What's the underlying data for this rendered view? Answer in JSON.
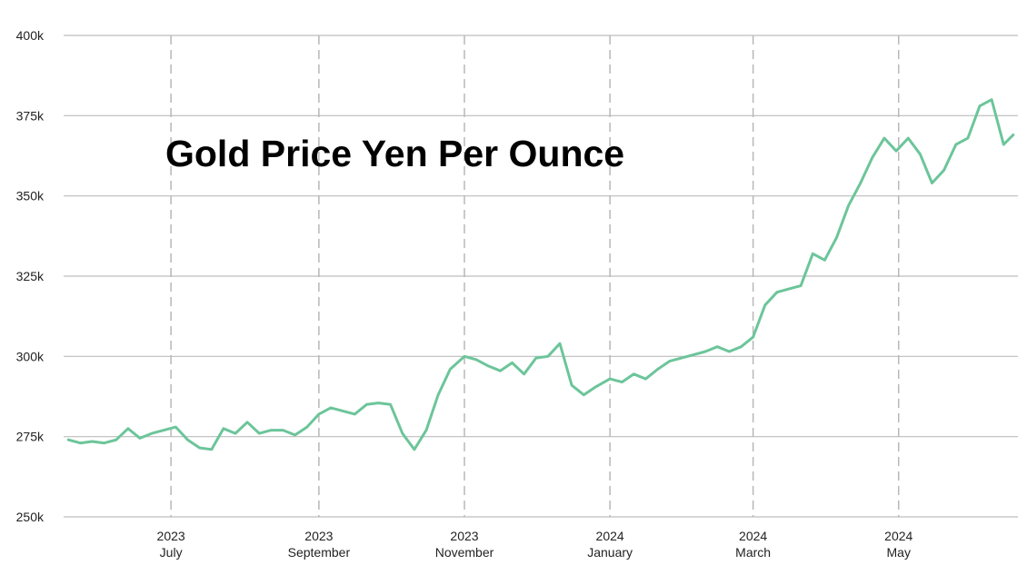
{
  "chart_data": {
    "type": "line",
    "title": "Gold Price Yen Per Ounce",
    "xlabel": "",
    "ylabel": "",
    "ylim": [
      250000,
      400000
    ],
    "y_ticks": [
      {
        "value": 250000,
        "label": "250k"
      },
      {
        "value": 275000,
        "label": "275k"
      },
      {
        "value": 300000,
        "label": "300k"
      },
      {
        "value": 325000,
        "label": "325k"
      },
      {
        "value": 350000,
        "label": "350k"
      },
      {
        "value": 375000,
        "label": "375k"
      },
      {
        "value": 400000,
        "label": "400k"
      }
    ],
    "xlim": [
      "2023-05-17",
      "2024-06-20"
    ],
    "x_ticks": [
      {
        "date": "2023-07-01",
        "year": "2023",
        "month": "July"
      },
      {
        "date": "2023-09-01",
        "year": "2023",
        "month": "September"
      },
      {
        "date": "2023-11-01",
        "year": "2023",
        "month": "November"
      },
      {
        "date": "2024-01-01",
        "year": "2024",
        "month": "January"
      },
      {
        "date": "2024-03-01",
        "year": "2024",
        "month": "March"
      },
      {
        "date": "2024-05-01",
        "year": "2024",
        "month": "May"
      }
    ],
    "grid": {
      "horizontal": "solid",
      "vertical": "dashed"
    },
    "colors": {
      "line": "#6cc59a",
      "grid": "#bdbdbd",
      "vgrid": "#b8b8b8"
    },
    "series": [
      {
        "x": [
          "2023-05-19",
          "2023-05-24",
          "2023-05-29",
          "2023-06-03",
          "2023-06-08",
          "2023-06-13",
          "2023-06-18",
          "2023-06-23",
          "2023-06-28",
          "2023-07-03",
          "2023-07-08",
          "2023-07-13",
          "2023-07-18",
          "2023-07-23",
          "2023-07-28",
          "2023-08-02",
          "2023-08-07",
          "2023-08-12",
          "2023-08-17",
          "2023-08-22",
          "2023-08-27",
          "2023-09-01",
          "2023-09-06",
          "2023-09-11",
          "2023-09-16",
          "2023-09-21",
          "2023-09-26",
          "2023-10-01",
          "2023-10-06",
          "2023-10-11",
          "2023-10-16",
          "2023-10-21",
          "2023-10-26",
          "2023-11-01",
          "2023-11-06",
          "2023-11-11",
          "2023-11-16",
          "2023-11-21",
          "2023-11-26",
          "2023-12-01",
          "2023-12-06",
          "2023-12-11",
          "2023-12-16",
          "2023-12-21",
          "2023-12-26",
          "2024-01-01",
          "2024-01-06",
          "2024-01-11",
          "2024-01-16",
          "2024-01-21",
          "2024-01-26",
          "2024-01-31",
          "2024-02-05",
          "2024-02-10",
          "2024-02-15",
          "2024-02-20",
          "2024-02-25",
          "2024-03-01",
          "2024-03-06",
          "2024-03-11",
          "2024-03-16",
          "2024-03-21",
          "2024-03-26",
          "2024-03-31",
          "2024-04-05",
          "2024-04-10",
          "2024-04-15",
          "2024-04-20",
          "2024-04-25",
          "2024-04-30",
          "2024-05-05",
          "2024-05-10",
          "2024-05-15",
          "2024-05-20",
          "2024-05-25",
          "2024-05-30",
          "2024-06-04",
          "2024-06-09",
          "2024-06-14",
          "2024-06-18"
        ],
        "values": [
          274000,
          273000,
          273500,
          273000,
          274000,
          277500,
          274500,
          276000,
          277000,
          278000,
          274000,
          271500,
          271000,
          277500,
          276000,
          279500,
          276000,
          277000,
          277000,
          275500,
          278000,
          282000,
          284000,
          283000,
          282000,
          285000,
          285500,
          285000,
          276000,
          271000,
          277000,
          288000,
          296000,
          300000,
          299000,
          297000,
          295500,
          298000,
          294500,
          299500,
          300000,
          304000,
          291000,
          288000,
          290500,
          293000,
          292000,
          294500,
          293000,
          296000,
          298500,
          299500,
          300500,
          301500,
          303000,
          301500,
          303000,
          306000,
          316000,
          320000,
          321000,
          322000,
          332000,
          330000,
          337000,
          347000,
          354000,
          362000,
          368000,
          364000,
          368000,
          363000,
          354000,
          358000,
          366000,
          368000,
          378000,
          380000,
          366000,
          369000
        ]
      }
    ]
  }
}
